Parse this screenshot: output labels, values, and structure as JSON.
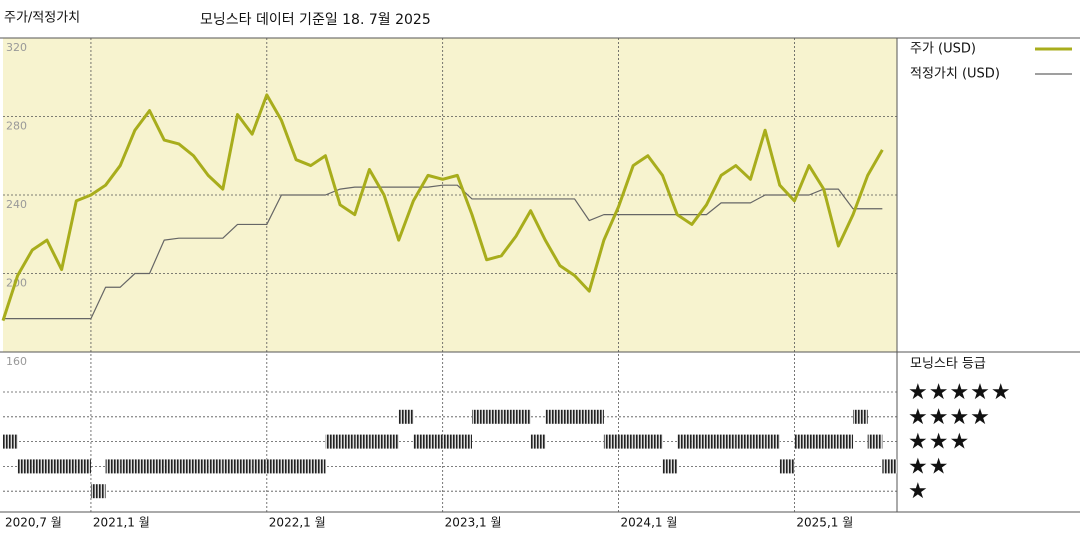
{
  "chart_data": {
    "type": "line",
    "title": "주가/적정가치",
    "subtitle": "모닝스타 데이터 기준일 18. 7월 2025",
    "x": [
      "2020-07",
      "2020-08",
      "2020-09",
      "2020-10",
      "2020-11",
      "2020-12",
      "2021-01",
      "2021-02",
      "2021-03",
      "2021-04",
      "2021-05",
      "2021-06",
      "2021-07",
      "2021-08",
      "2021-09",
      "2021-10",
      "2021-11",
      "2021-12",
      "2022-01",
      "2022-02",
      "2022-03",
      "2022-04",
      "2022-05",
      "2022-06",
      "2022-07",
      "2022-08",
      "2022-09",
      "2022-10",
      "2022-11",
      "2022-12",
      "2023-01",
      "2023-02",
      "2023-03",
      "2023-04",
      "2023-05",
      "2023-06",
      "2023-07",
      "2023-08",
      "2023-09",
      "2023-10",
      "2023-11",
      "2023-12",
      "2024-01",
      "2024-02",
      "2024-03",
      "2024-04",
      "2024-05",
      "2024-06",
      "2024-07",
      "2024-08",
      "2024-09",
      "2024-10",
      "2024-11",
      "2024-12",
      "2025-01",
      "2025-02",
      "2025-03",
      "2025-04",
      "2025-05",
      "2025-06",
      "2025-07"
    ],
    "xlim": [
      "2020-07",
      "2025-08"
    ],
    "xticks": [
      {
        "value": "2020-07",
        "label": "2020,7 월"
      },
      {
        "value": "2021-01",
        "label": "2021,1 월"
      },
      {
        "value": "2022-01",
        "label": "2022,1 월"
      },
      {
        "value": "2023-01",
        "label": "2023,1 월"
      },
      {
        "value": "2024-01",
        "label": "2024,1 월"
      },
      {
        "value": "2025-01",
        "label": "2025,1 월"
      }
    ],
    "ylim": [
      160,
      320
    ],
    "yticks": [
      160,
      200,
      240,
      280,
      320
    ],
    "grid": true,
    "series": [
      {
        "name": "주가 (USD)",
        "color": "#a8ad1c",
        "width": 3,
        "values": [
          176,
          199,
          212,
          217,
          202,
          237,
          240,
          245,
          255,
          273,
          283,
          268,
          266,
          260,
          250,
          243,
          281,
          271,
          291,
          278,
          258,
          255,
          260,
          235,
          230,
          253,
          240,
          217,
          237,
          250,
          248,
          250,
          230,
          207,
          209,
          219,
          232,
          217,
          204,
          199,
          191,
          217,
          234,
          255,
          260,
          250,
          230,
          225,
          235,
          250,
          255,
          248,
          273,
          245,
          237,
          255,
          243,
          214,
          230,
          250,
          263
        ]
      },
      {
        "name": "적정가치 (USD)",
        "color": "#666666",
        "width": 1.2,
        "values": [
          177,
          177,
          177,
          177,
          177,
          177,
          177,
          193,
          193,
          200,
          200,
          217,
          218,
          218,
          218,
          218,
          225,
          225,
          225,
          240,
          240,
          240,
          240,
          243,
          244,
          244,
          244,
          244,
          244,
          244,
          245,
          245,
          238,
          238,
          238,
          238,
          238,
          238,
          238,
          238,
          227,
          230,
          230,
          230,
          230,
          230,
          230,
          230,
          230,
          236,
          236,
          236,
          240,
          240,
          240,
          240,
          243,
          243,
          233,
          233,
          233
        ]
      }
    ],
    "rating": {
      "title": "모닝스타 등급",
      "labels": [
        "★★★★★",
        "★★★★",
        "★★★",
        "★★",
        "★"
      ],
      "values": [
        3,
        2,
        2,
        2,
        2,
        2,
        1,
        2,
        2,
        2,
        2,
        2,
        2,
        2,
        2,
        2,
        2,
        2,
        2,
        2,
        2,
        2,
        3,
        3,
        3,
        3,
        3,
        4,
        3,
        3,
        3,
        3,
        4,
        4,
        4,
        4,
        3,
        4,
        4,
        4,
        4,
        3,
        3,
        3,
        3,
        2,
        3,
        3,
        3,
        3,
        3,
        3,
        3,
        2,
        3,
        3,
        3,
        3,
        4,
        3,
        2
      ]
    }
  }
}
